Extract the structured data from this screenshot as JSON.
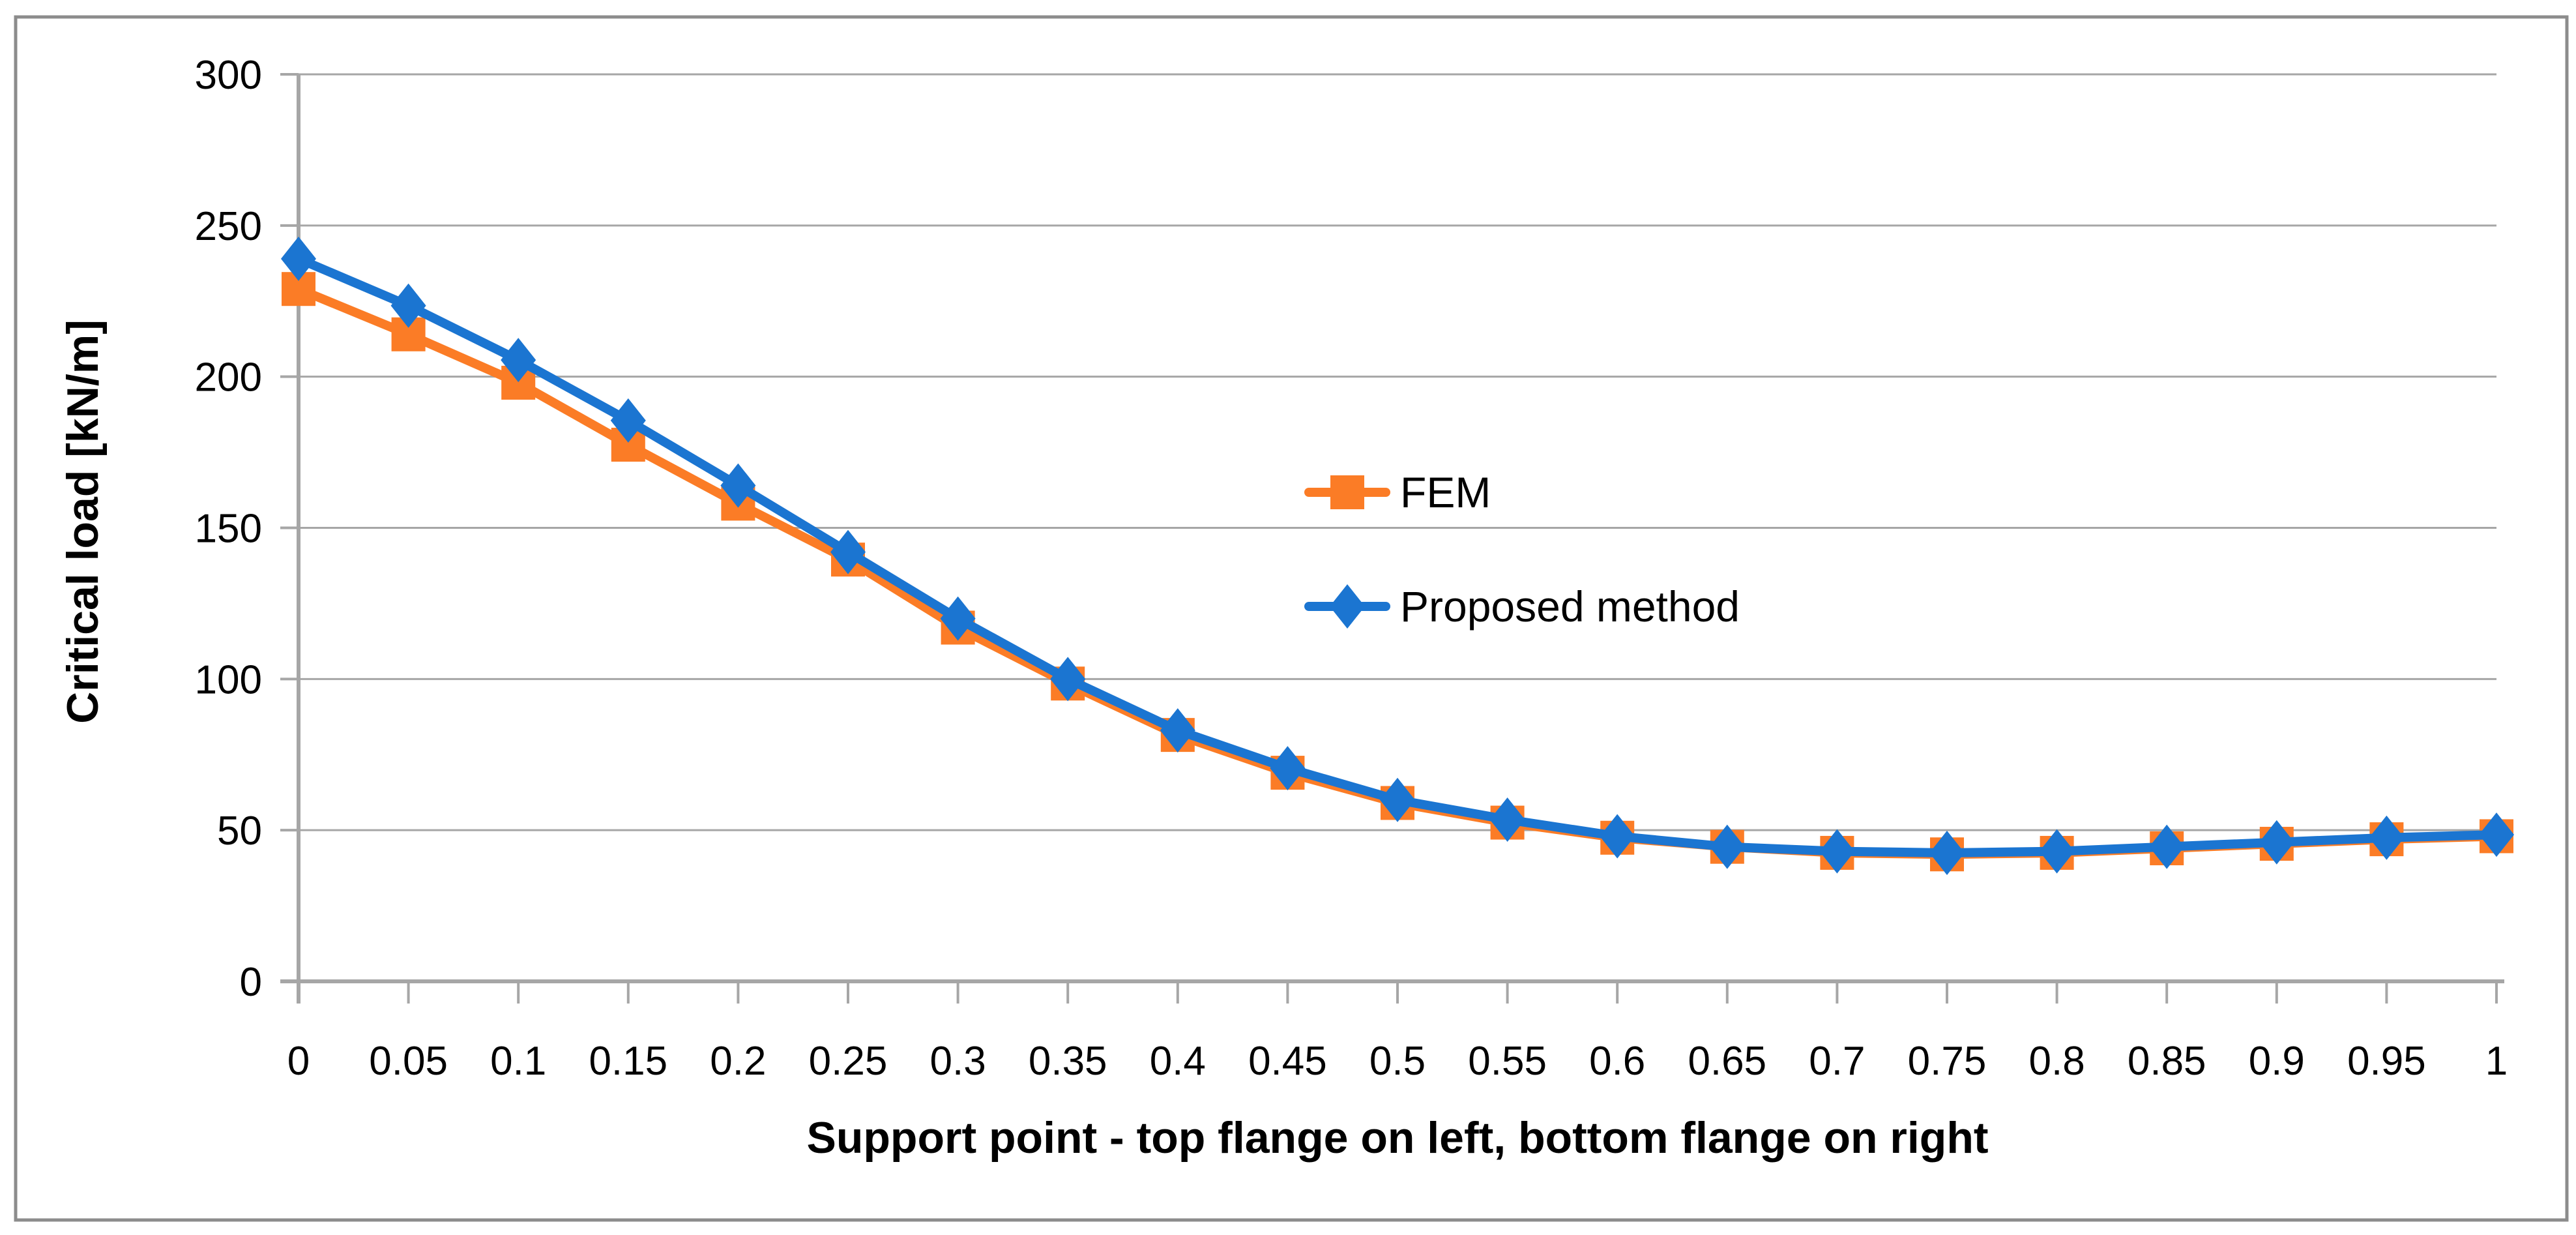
{
  "chart_data": {
    "type": "line",
    "title": "",
    "xlabel": "Support point - top flange on left, bottom flange on right",
    "ylabel": "Critical load [kN/m]",
    "xlim": [
      0,
      1
    ],
    "ylim": [
      0,
      300
    ],
    "grid": "horizontal",
    "legend_position": "inside-center",
    "x": [
      0,
      0.05,
      0.1,
      0.15,
      0.2,
      0.25,
      0.3,
      0.35,
      0.4,
      0.45,
      0.5,
      0.55,
      0.6,
      0.65,
      0.7,
      0.75,
      0.8,
      0.85,
      0.9,
      0.95,
      1
    ],
    "x_tick_labels": [
      "0",
      "0.05",
      "0.1",
      "0.15",
      "0.2",
      "0.25",
      "0.3",
      "0.35",
      "0.4",
      "0.45",
      "0.5",
      "0.55",
      "0.6",
      "0.65",
      "0.7",
      "0.75",
      "0.8",
      "0.85",
      "0.9",
      "0.95",
      "1"
    ],
    "y_ticks": [
      0,
      50,
      100,
      150,
      200,
      250,
      300
    ],
    "y_tick_labels": [
      "0",
      "50",
      "100",
      "150",
      "200",
      "250",
      "300"
    ],
    "series": [
      {
        "name": "FEM",
        "color": "#FB7C26",
        "marker": "square",
        "values": [
          229,
          214,
          198,
          177.5,
          158,
          139.5,
          117,
          98.5,
          81.5,
          69,
          59,
          52.5,
          47.5,
          44.5,
          42.5,
          42,
          42.5,
          44,
          45.5,
          47,
          48
        ]
      },
      {
        "name": "Proposed method",
        "color": "#1B75D1",
        "marker": "diamond",
        "values": [
          239,
          223.5,
          205.5,
          185.5,
          164,
          142,
          120,
          100,
          83,
          70.5,
          60,
          53.5,
          48,
          44.5,
          43,
          42.5,
          43,
          44.5,
          46,
          47.5,
          48.5
        ]
      }
    ],
    "colors": {
      "gridline": "#A6A6A6",
      "axis": "#A6A6A6",
      "tick": "#A6A6A6",
      "figure_border": "#8C8C8C",
      "text": "#000000",
      "background": "#FFFFFF"
    }
  }
}
